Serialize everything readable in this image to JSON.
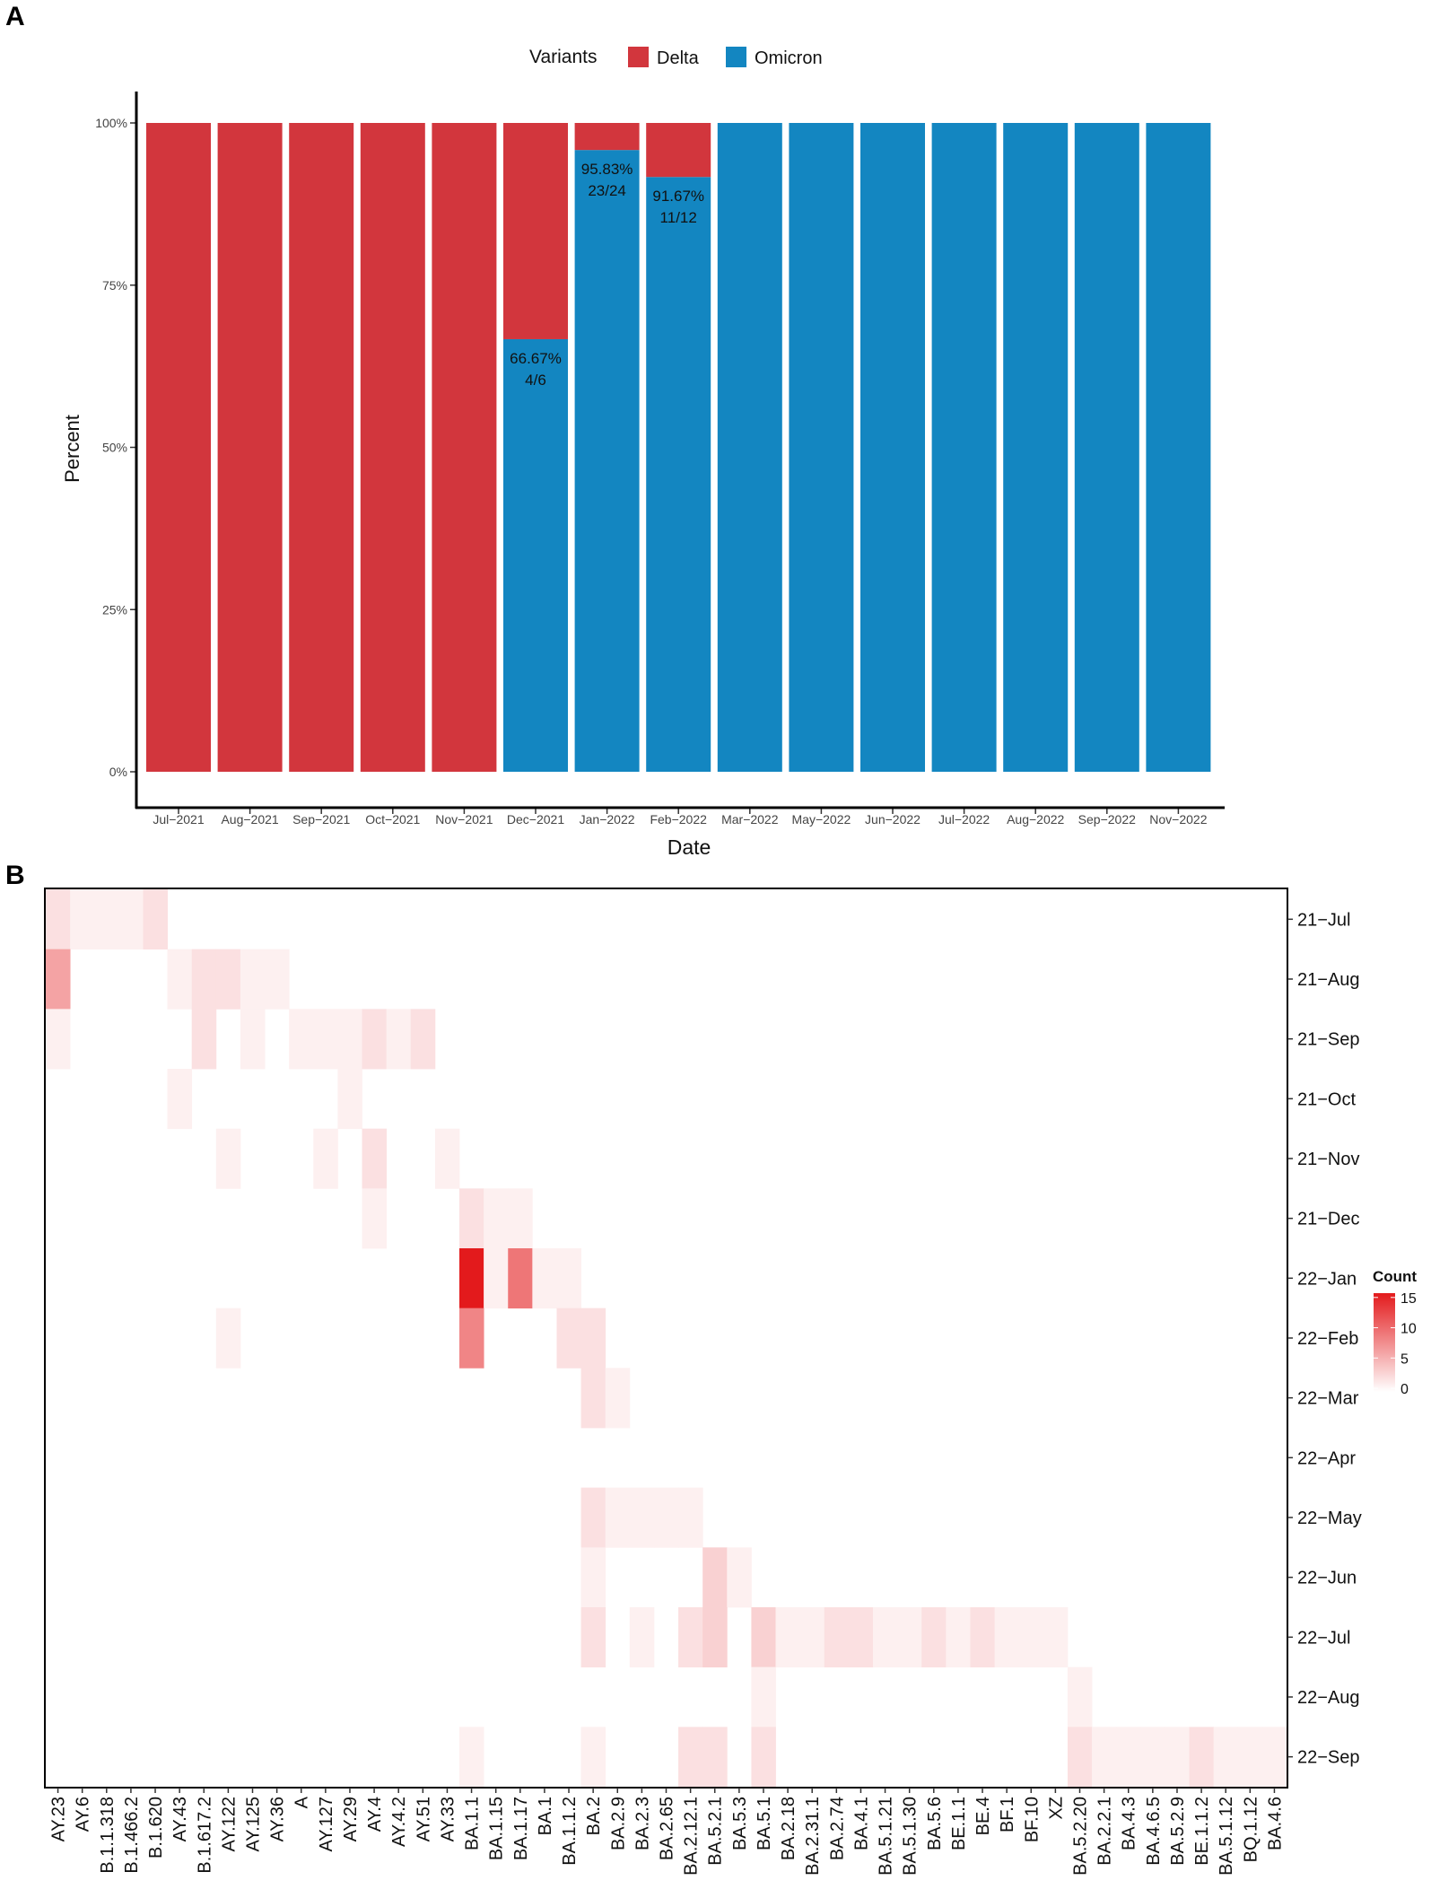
{
  "chart_data": [
    {
      "panel_label": "A",
      "type": "bar",
      "stacked": true,
      "xlabel": "Date",
      "ylabel": "Percent",
      "ylim": [
        0,
        100
      ],
      "yticks": [
        "0%",
        "25%",
        "50%",
        "75%",
        "100%"
      ],
      "legend": {
        "title": "Variants",
        "position": "top"
      },
      "categories": [
        "Jul-2021",
        "Aug-2021",
        "Sep-2021",
        "Oct-2021",
        "Nov-2021",
        "Dec-2021",
        "Jan-2022",
        "Feb-2022",
        "Mar-2022",
        "May-2022",
        "Jun-2022",
        "Jul-2022",
        "Aug-2022",
        "Sep-2022",
        "Nov-2022"
      ],
      "series": [
        {
          "name": "Omicron",
          "color": "#1386C1",
          "values": [
            0,
            0,
            0,
            0,
            0,
            66.67,
            95.83,
            91.67,
            100,
            100,
            100,
            100,
            100,
            100,
            100
          ]
        },
        {
          "name": "Delta",
          "color": "#D2363D",
          "values": [
            100,
            100,
            100,
            100,
            100,
            33.33,
            4.17,
            8.33,
            0,
            0,
            0,
            0,
            0,
            0,
            0
          ]
        }
      ],
      "annotations": [
        {
          "category": "Dec-2021",
          "pct": "66.67%",
          "frac": "4/6"
        },
        {
          "category": "Jan-2022",
          "pct": "95.83%",
          "frac": "23/24"
        },
        {
          "category": "Feb-2022",
          "pct": "91.67%",
          "frac": "11/12"
        }
      ]
    },
    {
      "panel_label": "B",
      "type": "heatmap",
      "rows": [
        "21-Jul",
        "21-Aug",
        "21-Sep",
        "21-Oct",
        "21-Nov",
        "21-Dec",
        "22-Jan",
        "22-Feb",
        "22-Mar",
        "22-Apr",
        "22-May",
        "22-Jun",
        "22-Jul",
        "22-Aug",
        "22-Sep"
      ],
      "columns": [
        "AY.23",
        "AY.6",
        "B.1.1.318",
        "B.1.466.2",
        "B.1.620",
        "AY.43",
        "B.1.617.2",
        "AY.122",
        "AY.125",
        "AY.36",
        "A",
        "AY.127",
        "AY.29",
        "AY.4",
        "AY.4.2",
        "AY.51",
        "AY.33",
        "BA.1.1",
        "BA.1.15",
        "BA.1.17",
        "BA.1",
        "BA.1.1.2",
        "BA.2",
        "BA.2.9",
        "BA.2.3",
        "BA.2.65",
        "BA.2.12.1",
        "BA.5.2.1",
        "BA.5.3",
        "BA.5.1",
        "BA.2.18",
        "BA.2.31.1",
        "BA.2.74",
        "BA.4.1",
        "BA.5.1.21",
        "BA.5.1.30",
        "BA.5.6",
        "BE.1.1",
        "BE.4",
        "BF.1",
        "BF.10",
        "XZ",
        "BA.5.2.20",
        "BA.2.2.1",
        "BA.4.3",
        "BA.4.6.5",
        "BA.5.2.9",
        "BE.1.1.2",
        "BA.5.1.12",
        "BQ.1.12",
        "BA.4.6"
      ],
      "values": [
        [
          2,
          1,
          1,
          1,
          2,
          0,
          0,
          0,
          0,
          0,
          0,
          0,
          0,
          0,
          0,
          0,
          0,
          0,
          0,
          0,
          0,
          0,
          0,
          0,
          0,
          0,
          0,
          0,
          0,
          0,
          0,
          0,
          0,
          0,
          0,
          0,
          0,
          0,
          0,
          0,
          0,
          0,
          0,
          0,
          0,
          0,
          0,
          0,
          0,
          0,
          0
        ],
        [
          6,
          0,
          0,
          0,
          0,
          1,
          2,
          2,
          1,
          1,
          0,
          0,
          0,
          0,
          0,
          0,
          0,
          0,
          0,
          0,
          0,
          0,
          0,
          0,
          0,
          0,
          0,
          0,
          0,
          0,
          0,
          0,
          0,
          0,
          0,
          0,
          0,
          0,
          0,
          0,
          0,
          0,
          0,
          0,
          0,
          0,
          0,
          0,
          0,
          0,
          0
        ],
        [
          1,
          0,
          0,
          0,
          0,
          0,
          2,
          0,
          1,
          0,
          1,
          1,
          1,
          2,
          1,
          2,
          0,
          0,
          0,
          0,
          0,
          0,
          0,
          0,
          0,
          0,
          0,
          0,
          0,
          0,
          0,
          0,
          0,
          0,
          0,
          0,
          0,
          0,
          0,
          0,
          0,
          0,
          0,
          0,
          0,
          0,
          0,
          0,
          0,
          0,
          0
        ],
        [
          0,
          0,
          0,
          0,
          0,
          1,
          0,
          0,
          0,
          0,
          0,
          0,
          1,
          0,
          0,
          0,
          0,
          0,
          0,
          0,
          0,
          0,
          0,
          0,
          0,
          0,
          0,
          0,
          0,
          0,
          0,
          0,
          0,
          0,
          0,
          0,
          0,
          0,
          0,
          0,
          0,
          0,
          0,
          0,
          0,
          0,
          0,
          0,
          0,
          0,
          0
        ],
        [
          0,
          0,
          0,
          0,
          0,
          0,
          0,
          1,
          0,
          0,
          0,
          1,
          0,
          2,
          0,
          0,
          1,
          0,
          0,
          0,
          0,
          0,
          0,
          0,
          0,
          0,
          0,
          0,
          0,
          0,
          0,
          0,
          0,
          0,
          0,
          0,
          0,
          0,
          0,
          0,
          0,
          0,
          0,
          0,
          0,
          0,
          0,
          0,
          0,
          0,
          0
        ],
        [
          0,
          0,
          0,
          0,
          0,
          0,
          0,
          0,
          0,
          0,
          0,
          0,
          0,
          1,
          0,
          0,
          0,
          2,
          1,
          1,
          0,
          0,
          0,
          0,
          0,
          0,
          0,
          0,
          0,
          0,
          0,
          0,
          0,
          0,
          0,
          0,
          0,
          0,
          0,
          0,
          0,
          0,
          0,
          0,
          0,
          0,
          0,
          0,
          0,
          0,
          0
        ],
        [
          0,
          0,
          0,
          0,
          0,
          0,
          0,
          0,
          0,
          0,
          0,
          0,
          0,
          0,
          0,
          0,
          0,
          15,
          1,
          9,
          1,
          1,
          0,
          0,
          0,
          0,
          0,
          0,
          0,
          0,
          0,
          0,
          0,
          0,
          0,
          0,
          0,
          0,
          0,
          0,
          0,
          0,
          0,
          0,
          0,
          0,
          0,
          0,
          0,
          0,
          0
        ],
        [
          0,
          0,
          0,
          0,
          0,
          0,
          0,
          1,
          0,
          0,
          0,
          0,
          0,
          0,
          0,
          0,
          0,
          8,
          0,
          0,
          0,
          2,
          2,
          0,
          0,
          0,
          0,
          0,
          0,
          0,
          0,
          0,
          0,
          0,
          0,
          0,
          0,
          0,
          0,
          0,
          0,
          0,
          0,
          0,
          0,
          0,
          0,
          0,
          0,
          0,
          0
        ],
        [
          0,
          0,
          0,
          0,
          0,
          0,
          0,
          0,
          0,
          0,
          0,
          0,
          0,
          0,
          0,
          0,
          0,
          0,
          0,
          0,
          0,
          0,
          2,
          1,
          0,
          0,
          0,
          0,
          0,
          0,
          0,
          0,
          0,
          0,
          0,
          0,
          0,
          0,
          0,
          0,
          0,
          0,
          0,
          0,
          0,
          0,
          0,
          0,
          0,
          0,
          0
        ],
        [
          0,
          0,
          0,
          0,
          0,
          0,
          0,
          0,
          0,
          0,
          0,
          0,
          0,
          0,
          0,
          0,
          0,
          0,
          0,
          0,
          0,
          0,
          0,
          0,
          0,
          0,
          0,
          0,
          0,
          0,
          0,
          0,
          0,
          0,
          0,
          0,
          0,
          0,
          0,
          0,
          0,
          0,
          0,
          0,
          0,
          0,
          0,
          0,
          0,
          0,
          0
        ],
        [
          0,
          0,
          0,
          0,
          0,
          0,
          0,
          0,
          0,
          0,
          0,
          0,
          0,
          0,
          0,
          0,
          0,
          0,
          0,
          0,
          0,
          0,
          2,
          1,
          1,
          1,
          1,
          0,
          0,
          0,
          0,
          0,
          0,
          0,
          0,
          0,
          0,
          0,
          0,
          0,
          0,
          0,
          0,
          0,
          0,
          0,
          0,
          0,
          0,
          0,
          0
        ],
        [
          0,
          0,
          0,
          0,
          0,
          0,
          0,
          0,
          0,
          0,
          0,
          0,
          0,
          0,
          0,
          0,
          0,
          0,
          0,
          0,
          0,
          0,
          1,
          0,
          0,
          0,
          0,
          3,
          1,
          0,
          0,
          0,
          0,
          0,
          0,
          0,
          0,
          0,
          0,
          0,
          0,
          0,
          0,
          0,
          0,
          0,
          0,
          0,
          0,
          0,
          0
        ],
        [
          0,
          0,
          0,
          0,
          0,
          0,
          0,
          0,
          0,
          0,
          0,
          0,
          0,
          0,
          0,
          0,
          0,
          0,
          0,
          0,
          0,
          0,
          2,
          0,
          1,
          0,
          2,
          3,
          0,
          3,
          1,
          1,
          2,
          2,
          1,
          1,
          2,
          1,
          2,
          1,
          1,
          1,
          0,
          0,
          0,
          0,
          0,
          0,
          0,
          0,
          0
        ],
        [
          0,
          0,
          0,
          0,
          0,
          0,
          0,
          0,
          0,
          0,
          0,
          0,
          0,
          0,
          0,
          0,
          0,
          0,
          0,
          0,
          0,
          0,
          0,
          0,
          0,
          0,
          0,
          0,
          0,
          1,
          0,
          0,
          0,
          0,
          0,
          0,
          0,
          0,
          0,
          0,
          0,
          0,
          1,
          0,
          0,
          0,
          0,
          0,
          0,
          0,
          0
        ],
        [
          0,
          0,
          0,
          0,
          0,
          0,
          0,
          0,
          0,
          0,
          0,
          0,
          0,
          0,
          0,
          0,
          0,
          1,
          0,
          0,
          0,
          0,
          1,
          0,
          0,
          0,
          2,
          2,
          0,
          2,
          0,
          0,
          0,
          0,
          0,
          0,
          0,
          0,
          0,
          0,
          0,
          0,
          2,
          1,
          1,
          1,
          1,
          2,
          1,
          1,
          1
        ]
      ],
      "legend": {
        "title": "Count",
        "ticks": [
          0,
          5,
          10,
          15
        ],
        "position": "right",
        "low_color": "#FFFFFF",
        "high_color": "#E31A1C"
      }
    }
  ]
}
